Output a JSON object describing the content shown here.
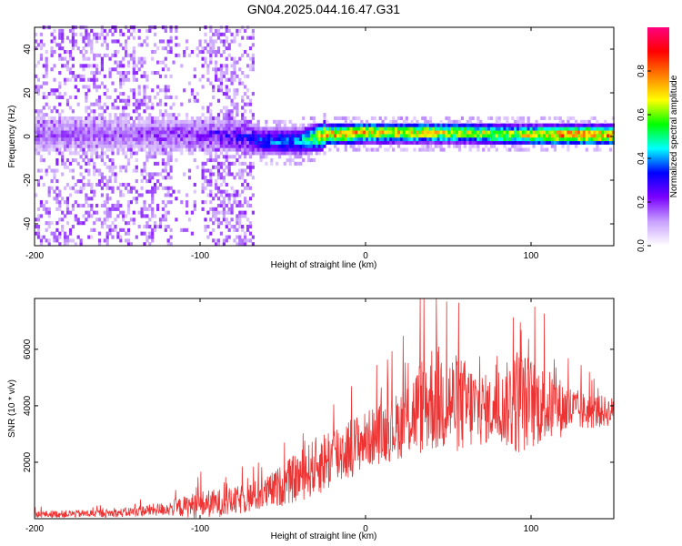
{
  "chart_data": [
    {
      "type": "heatmap",
      "title": "GN04.2025.044.16.47.G31",
      "xlabel": "Height of straight line (km)",
      "ylabel": "Frequency (Hz)",
      "xlim": [
        -200,
        150
      ],
      "ylim": [
        -50,
        50
      ],
      "x_ticks": [
        -200,
        -100,
        0,
        100
      ],
      "y_ticks": [
        -40,
        -20,
        0,
        20,
        40
      ],
      "colorbar": {
        "label": "Normalized spectral amplitude",
        "range": [
          0.0,
          1.0
        ],
        "ticks": [
          0.0,
          0.2,
          0.4,
          0.6,
          0.8
        ],
        "tick_labels": [
          "0.0",
          "0.2",
          "0.4",
          "0.6",
          "0.8"
        ],
        "colormap": [
          "#ffffff",
          "#c8a0ff",
          "#7a00ff",
          "#0000ff",
          "#00ffff",
          "#00ff00",
          "#ffff00",
          "#ff8000",
          "#ff0000",
          "#ff0080"
        ]
      },
      "ridge_profile": [
        {
          "x": -150,
          "freq": 0,
          "amp": 0.2
        },
        {
          "x": -110,
          "freq": 0,
          "amp": 0.25
        },
        {
          "x": -90,
          "freq": 0,
          "amp": 0.3
        },
        {
          "x": -60,
          "freq": -3,
          "amp": 0.4
        },
        {
          "x": -40,
          "freq": -3,
          "amp": 0.45
        },
        {
          "x": -25,
          "freq": 0,
          "amp": 0.85
        },
        {
          "x": 0,
          "freq": 1,
          "amp": 0.8
        },
        {
          "x": 30,
          "freq": 1,
          "amp": 0.75
        },
        {
          "x": 60,
          "freq": 1,
          "amp": 0.7
        },
        {
          "x": 90,
          "freq": 0,
          "amp": 0.7
        },
        {
          "x": 120,
          "freq": 0,
          "amp": 0.85
        },
        {
          "x": 150,
          "freq": 0,
          "amp": 0.85
        }
      ]
    },
    {
      "type": "line",
      "title": "",
      "xlabel": "Height of straight line (km)",
      "ylabel": "SNR (10 * v/v)",
      "xlim": [
        -200,
        150
      ],
      "ylim": [
        0,
        7800
      ],
      "x_ticks": [
        -200,
        -100,
        0,
        100
      ],
      "y_ticks": [
        2000,
        4000,
        6000
      ],
      "series": [
        {
          "color": "#ee3333",
          "envelope": [
            {
              "x": -200,
              "mean": 150,
              "spread": 120
            },
            {
              "x": -150,
              "mean": 200,
              "spread": 150
            },
            {
              "x": -120,
              "mean": 350,
              "spread": 250
            },
            {
              "x": -100,
              "mean": 500,
              "spread": 500
            },
            {
              "x": -80,
              "mean": 600,
              "spread": 500
            },
            {
              "x": -60,
              "mean": 900,
              "spread": 600
            },
            {
              "x": -40,
              "mean": 1500,
              "spread": 900
            },
            {
              "x": -20,
              "mean": 2200,
              "spread": 1200
            },
            {
              "x": 0,
              "mean": 2800,
              "spread": 1000
            },
            {
              "x": 20,
              "mean": 3300,
              "spread": 1200
            },
            {
              "x": 40,
              "mean": 4300,
              "spread": 2000
            },
            {
              "x": 60,
              "mean": 4000,
              "spread": 1700
            },
            {
              "x": 80,
              "mean": 3800,
              "spread": 1000
            },
            {
              "x": 90,
              "mean": 4200,
              "spread": 2000
            },
            {
              "x": 110,
              "mean": 4000,
              "spread": 1300
            },
            {
              "x": 130,
              "mean": 3800,
              "spread": 700
            },
            {
              "x": 150,
              "mean": 3800,
              "spread": 500
            }
          ]
        }
      ]
    }
  ]
}
